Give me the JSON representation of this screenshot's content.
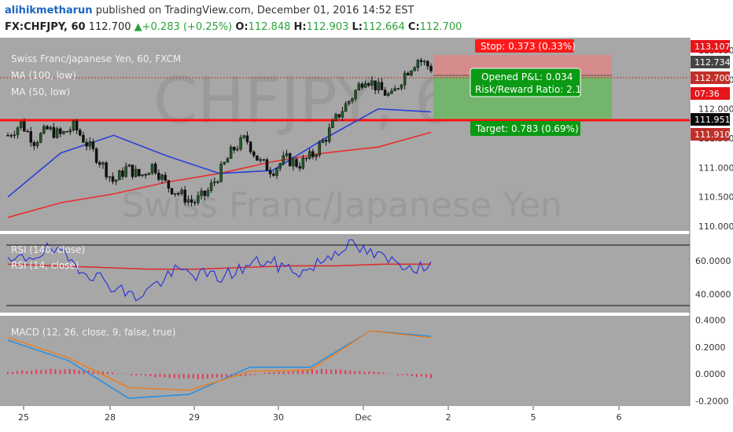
{
  "publisher": {
    "author": "alihikmetharun",
    "rest": " published on TradingView.com, December 01, 2016 14:52 EST"
  },
  "quote": {
    "symbol": "FX:CHFJPY, 60",
    "last": "112.700",
    "change": "+0.283 (+0.25%)",
    "o_label": "O:",
    "o": "112.848",
    "h_label": "H:",
    "h": "112.903",
    "l_label": "L:",
    "l": "112.664",
    "c_label": "C:",
    "c": "112.700"
  },
  "watermark": {
    "symbol": "CHFJPY, 60",
    "name": "Swiss Franc/Japanese Yen"
  },
  "main_legend": {
    "title": "Swiss Franc/Japanese Yen, 60, FXCM",
    "ma100": "MA (100, low)",
    "ma50": "MA (50, low)"
  },
  "rsi_legend": {
    "rsi140": "RSI (140, close)",
    "rsi14": "RSI (14, close)"
  },
  "macd_legend": {
    "macd": "MACD (12, 26, close, 9, false, true)"
  },
  "position_tool": {
    "stop": "Stop: 0.373 (0.33%)",
    "opened_pnl": "Opened P&L: 0.034",
    "risk_reward": "Risk/Reward Ratio: 2.1",
    "target": "Target: 0.783 (0.69%)"
  },
  "price_tags": [
    {
      "text": "113.107",
      "color": "#e5151b"
    },
    {
      "text": "112.734",
      "color": "#ffffff"
    },
    {
      "text": "112.700",
      "color": "#ffffff"
    },
    {
      "text": "07:36",
      "color": "#e5151b"
    },
    {
      "text": "111.951",
      "color": "#ffffff"
    },
    {
      "text": "111.910",
      "color": "#e5151b"
    }
  ],
  "horizontal_line": {
    "price": 111.951,
    "color": "#ff1010"
  },
  "time_labels": [
    "25",
    "28",
    "29",
    "30",
    "Dec",
    "2",
    "5",
    "6"
  ],
  "colors": {
    "ma100": "#e8302c",
    "ma50": "#2b3fd6",
    "candle_up": "#1f5b24",
    "candle_down": "#101010",
    "rsi140": "#d93030",
    "rsi14": "#2f37d8",
    "macd": "#1f8fe8",
    "signal": "#ef7b18",
    "hist": "#e03a5a",
    "panel_bg": "#a7a7a7",
    "target_zone": "#74b56d",
    "stop_zone": "#d58b8b"
  },
  "chart_data": [
    {
      "type": "candlestick",
      "title": "Swiss Franc/Japanese Yen, 60, FXCM",
      "ylim": [
        110.0,
        113.107
      ],
      "y_ticks": [
        110.0,
        110.5,
        111.0,
        111.5,
        112.0,
        112.5,
        113.0
      ],
      "x_ticks": [
        "25",
        "28",
        "29",
        "30",
        "Dec",
        "2",
        "5",
        "6"
      ],
      "close_path": [
        111.55,
        111.75,
        111.45,
        111.65,
        111.55,
        111.7,
        111.4,
        111.1,
        110.75,
        111.0,
        110.85,
        111.05,
        110.7,
        110.55,
        110.4,
        110.55,
        110.9,
        111.3,
        111.5,
        111.1,
        110.95,
        111.15,
        111.05,
        111.2,
        111.5,
        111.9,
        112.2,
        112.55,
        112.35,
        112.2,
        112.6,
        112.85,
        112.7
      ],
      "series": [
        {
          "name": "MA (100, low)",
          "values": [
            110.15,
            110.4,
            110.55,
            110.75,
            110.9,
            111.1,
            111.25,
            111.35,
            111.6
          ]
        },
        {
          "name": "MA (50, low)",
          "values": [
            110.5,
            111.25,
            111.55,
            111.2,
            110.9,
            110.95,
            111.5,
            112.0,
            111.95
          ]
        }
      ],
      "horizontal_line": 111.951,
      "last_price": 112.7
    },
    {
      "type": "line",
      "title": "RSI",
      "ylim": [
        30,
        75
      ],
      "y_ticks": [
        40.0,
        60.0
      ],
      "series": [
        {
          "name": "RSI (140, close)",
          "values": [
            58,
            57,
            56,
            55,
            55,
            56,
            57,
            57,
            58,
            58
          ]
        },
        {
          "name": "RSI (14, close)",
          "values": [
            58,
            67,
            52,
            38,
            54,
            50,
            60,
            53,
            70,
            60,
            55
          ]
        }
      ]
    },
    {
      "type": "line",
      "title": "MACD",
      "ylim": [
        -0.22,
        0.42
      ],
      "y_ticks": [
        -0.2,
        0.0,
        0.2,
        0.4
      ],
      "series": [
        {
          "name": "MACD",
          "values": [
            0.25,
            0.1,
            -0.18,
            -0.15,
            0.05,
            0.05,
            0.32,
            0.28
          ]
        },
        {
          "name": "Signal",
          "values": [
            0.27,
            0.12,
            -0.1,
            -0.12,
            0.02,
            0.03,
            0.32,
            0.27
          ]
        }
      ]
    }
  ]
}
